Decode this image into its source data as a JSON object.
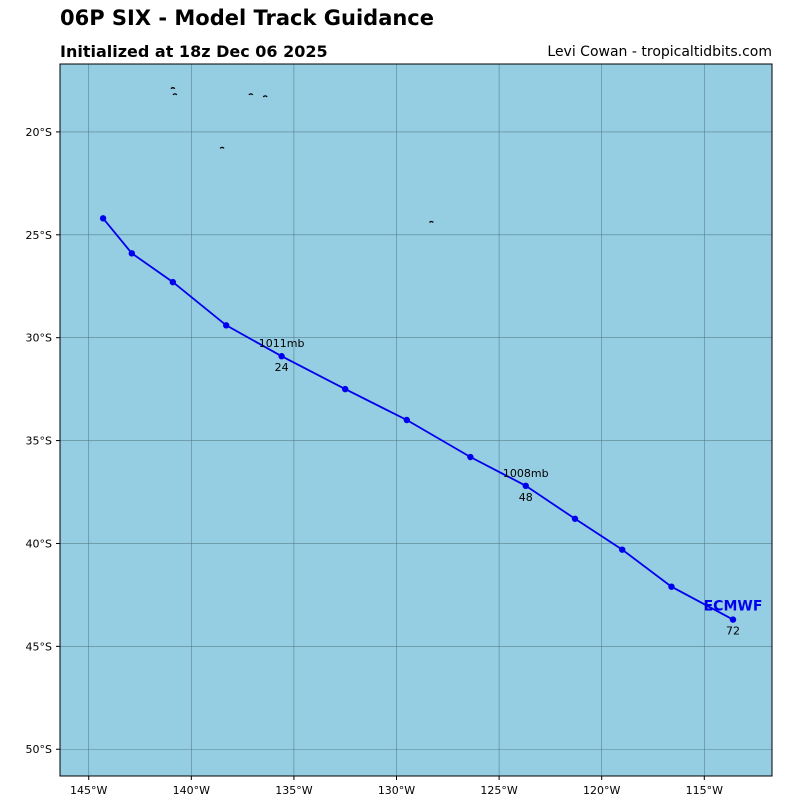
{
  "header": {
    "title": "06P SIX - Model Track Guidance",
    "subtitle": "Initialized at 18z Dec 06 2025",
    "credit": "Levi Cowan - tropicaltidbits.com"
  },
  "colors": {
    "ocean": "#95cde2",
    "track": "#0000ee",
    "grid": "#4a6f7c",
    "land": "#000000"
  },
  "chart_data": {
    "type": "line",
    "title": "06P SIX - Model Track Guidance",
    "xlim": [
      -146.4,
      -111.7
    ],
    "ylim": [
      -51.3,
      -16.7
    ],
    "x_ticks": [
      -145,
      -140,
      -135,
      -130,
      -125,
      -120,
      -115
    ],
    "x_tick_labels": [
      "145°W",
      "140°W",
      "135°W",
      "130°W",
      "125°W",
      "120°W",
      "115°W"
    ],
    "y_ticks": [
      -20,
      -25,
      -30,
      -35,
      -40,
      -45,
      -50
    ],
    "y_tick_labels": [
      "20°S",
      "25°S",
      "30°S",
      "35°S",
      "40°S",
      "45°S",
      "50°S"
    ],
    "grid": true,
    "series": [
      {
        "name": "ECMWF",
        "lon": [
          -144.3,
          -142.9,
          -140.9,
          -138.3,
          -135.6,
          -132.5,
          -129.5,
          -126.4,
          -123.7,
          -121.3,
          -119.0,
          -116.6,
          -113.6
        ],
        "lat": [
          -24.2,
          -25.9,
          -27.3,
          -29.4,
          -30.9,
          -32.5,
          -34.0,
          -35.8,
          -37.2,
          -38.8,
          -40.3,
          -42.1,
          -43.7
        ]
      }
    ],
    "annotations": [
      {
        "index": 4,
        "pressure": "1011mb",
        "hour": "24"
      },
      {
        "index": 8,
        "pressure": "1008mb",
        "hour": "48"
      },
      {
        "index": 12,
        "pressure": "",
        "hour": "72"
      }
    ],
    "islands": [
      {
        "lon": -140.9,
        "lat": -17.9
      },
      {
        "lon": -140.8,
        "lat": -18.2
      },
      {
        "lon": -137.1,
        "lat": -18.2
      },
      {
        "lon": -136.4,
        "lat": -18.3
      },
      {
        "lon": -138.5,
        "lat": -20.8
      },
      {
        "lon": -128.3,
        "lat": -24.4
      }
    ]
  }
}
